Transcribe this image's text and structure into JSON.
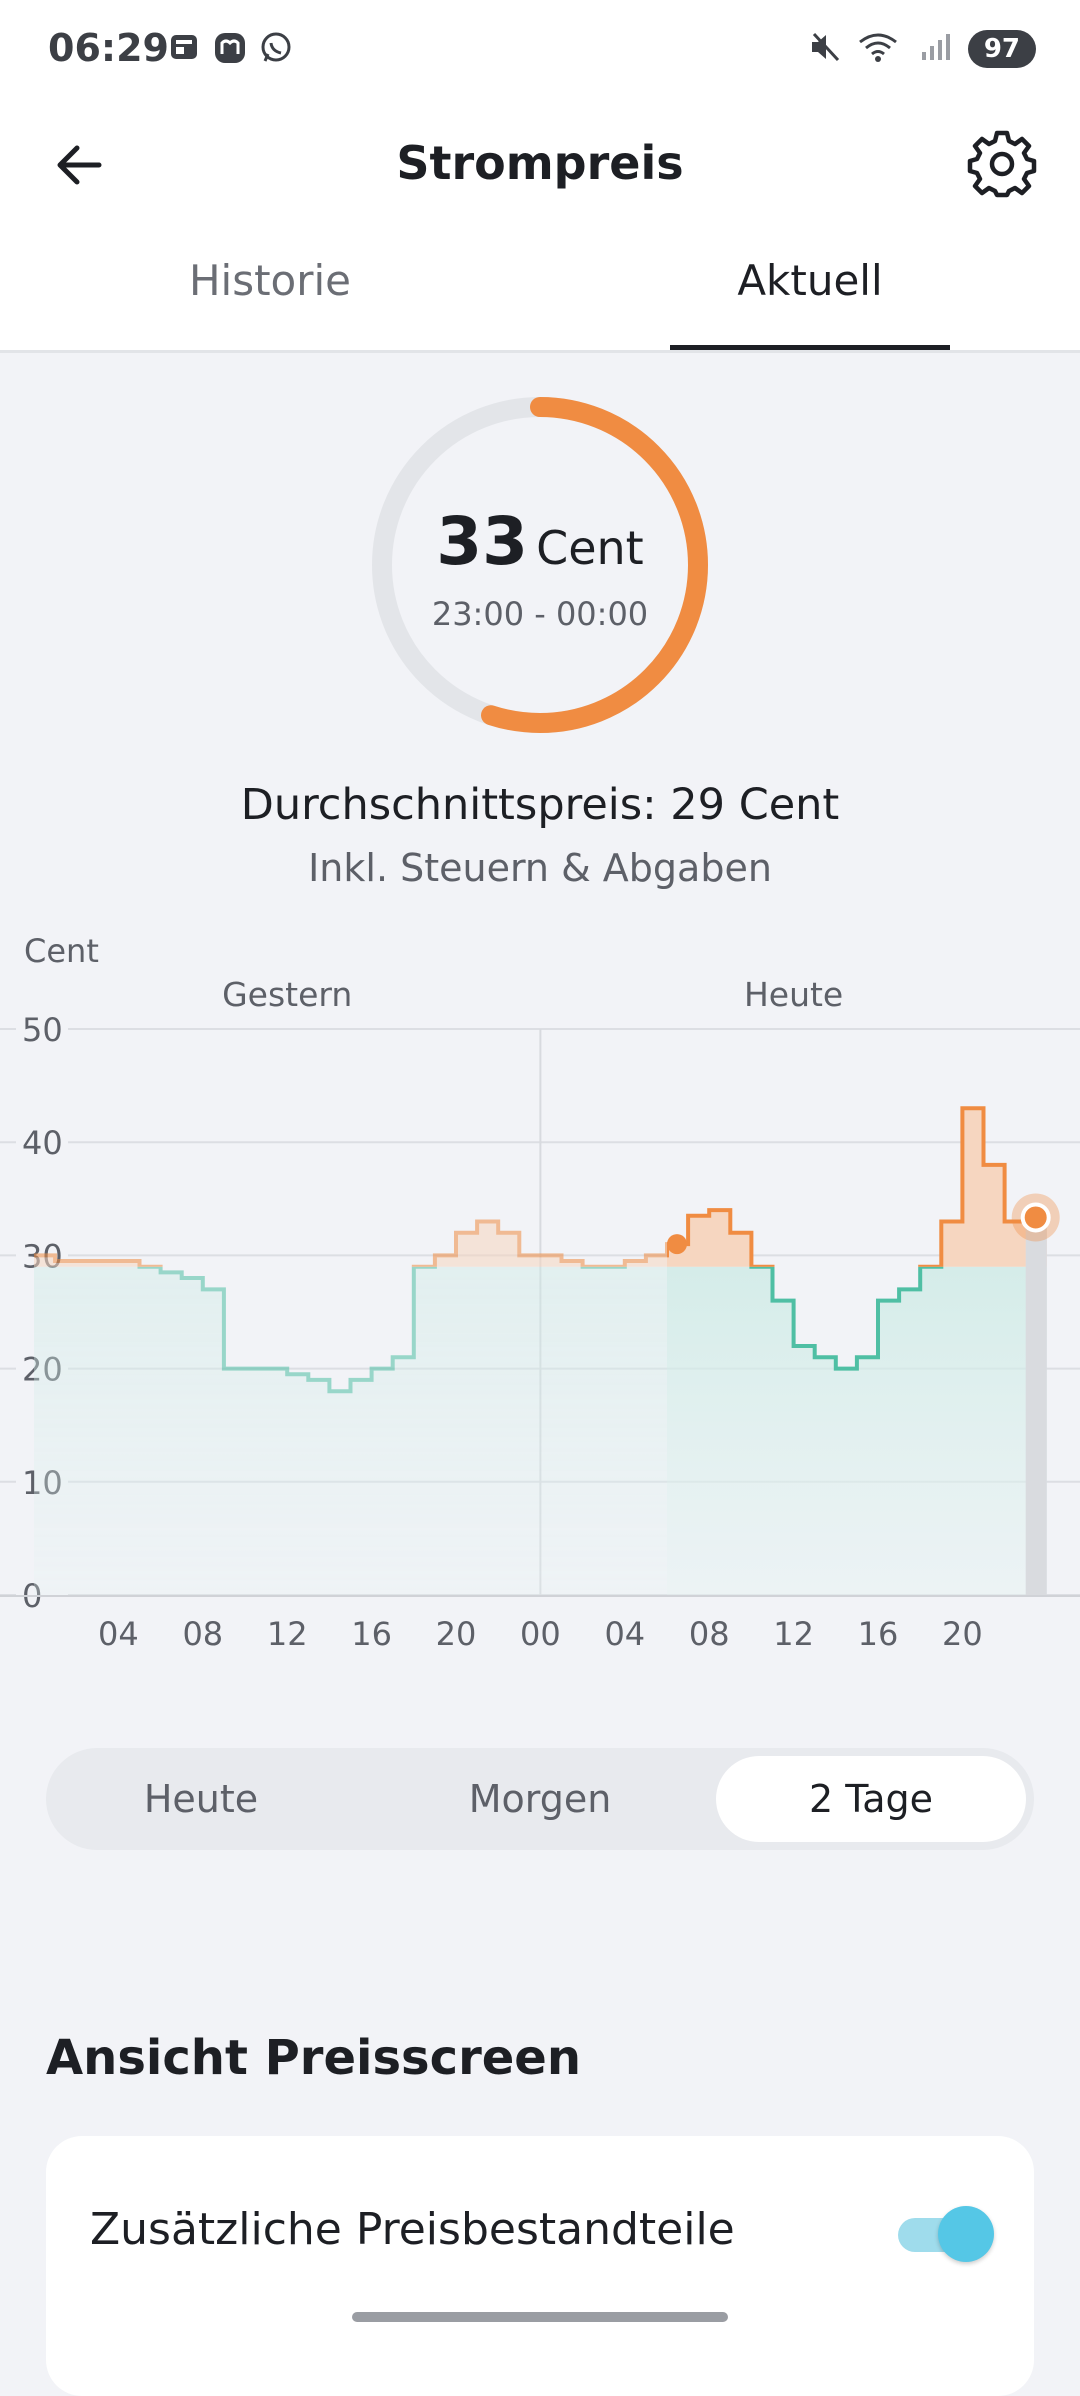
{
  "status_bar": {
    "time": "06:29",
    "battery": "97",
    "left_icons": [
      "news-icon",
      "mastodon-icon",
      "whatsapp-icon"
    ],
    "right_icons": [
      "mute-icon",
      "wifi-icon",
      "signal-icon"
    ]
  },
  "header": {
    "title": "Strompreis",
    "tabs": [
      {
        "label": "Historie",
        "active": false
      },
      {
        "label": "Aktuell",
        "active": true
      }
    ]
  },
  "current_price": {
    "value": "33",
    "unit": "Cent",
    "time_range": "23:00 - 00:00",
    "gauge_fraction": 0.55
  },
  "summary": {
    "average": "Durchschnittspreis: 29 Cent",
    "tax_note": "Inkl. Steuern & Abgaben"
  },
  "chart_data": {
    "type": "area",
    "ylabel": "Cent",
    "ylim": [
      0,
      50
    ],
    "yticks": [
      "50",
      "40",
      "30",
      "20",
      "10",
      "0"
    ],
    "xticks": [
      "04",
      "08",
      "12",
      "16",
      "20",
      "00",
      "04",
      "08",
      "12",
      "16",
      "20"
    ],
    "period_labels": [
      "Gestern",
      "Heute"
    ],
    "average_line": 29,
    "series": [
      {
        "name": "Gestern",
        "hours": [
          0,
          1,
          2,
          3,
          4,
          5,
          6,
          7,
          8,
          9,
          10,
          11,
          12,
          13,
          14,
          15,
          16,
          17,
          18,
          19,
          20,
          21,
          22,
          23
        ],
        "values": [
          30,
          29.5,
          29.5,
          29.5,
          29.5,
          29,
          28.5,
          28,
          27,
          20,
          20,
          20,
          19.5,
          19,
          18,
          19,
          20,
          21,
          29,
          30,
          32,
          33,
          32,
          30
        ]
      },
      {
        "name": "Heute",
        "hours": [
          0,
          1,
          2,
          3,
          4,
          5,
          6,
          7,
          8,
          9,
          10,
          11,
          12,
          13,
          14,
          15,
          16,
          17,
          18,
          19,
          20,
          21,
          22,
          23
        ],
        "values": [
          30,
          29.5,
          29,
          29,
          29.5,
          30,
          31,
          33.5,
          34,
          32,
          29,
          26,
          22,
          21,
          20,
          21,
          26,
          27,
          29,
          33,
          43,
          38,
          33,
          33
        ]
      }
    ],
    "current_hour_index": 47,
    "colors": {
      "above_avg": "#f08c42",
      "below_avg": "#4fbfa4"
    }
  },
  "range_selector": {
    "options": [
      {
        "label": "Heute",
        "active": false
      },
      {
        "label": "Morgen",
        "active": false
      },
      {
        "label": "2 Tage",
        "active": true
      }
    ]
  },
  "view_section": {
    "title": "Ansicht Preisscreen",
    "option_label": "Zusätzliche Preisbestandteile",
    "option_enabled": true
  }
}
